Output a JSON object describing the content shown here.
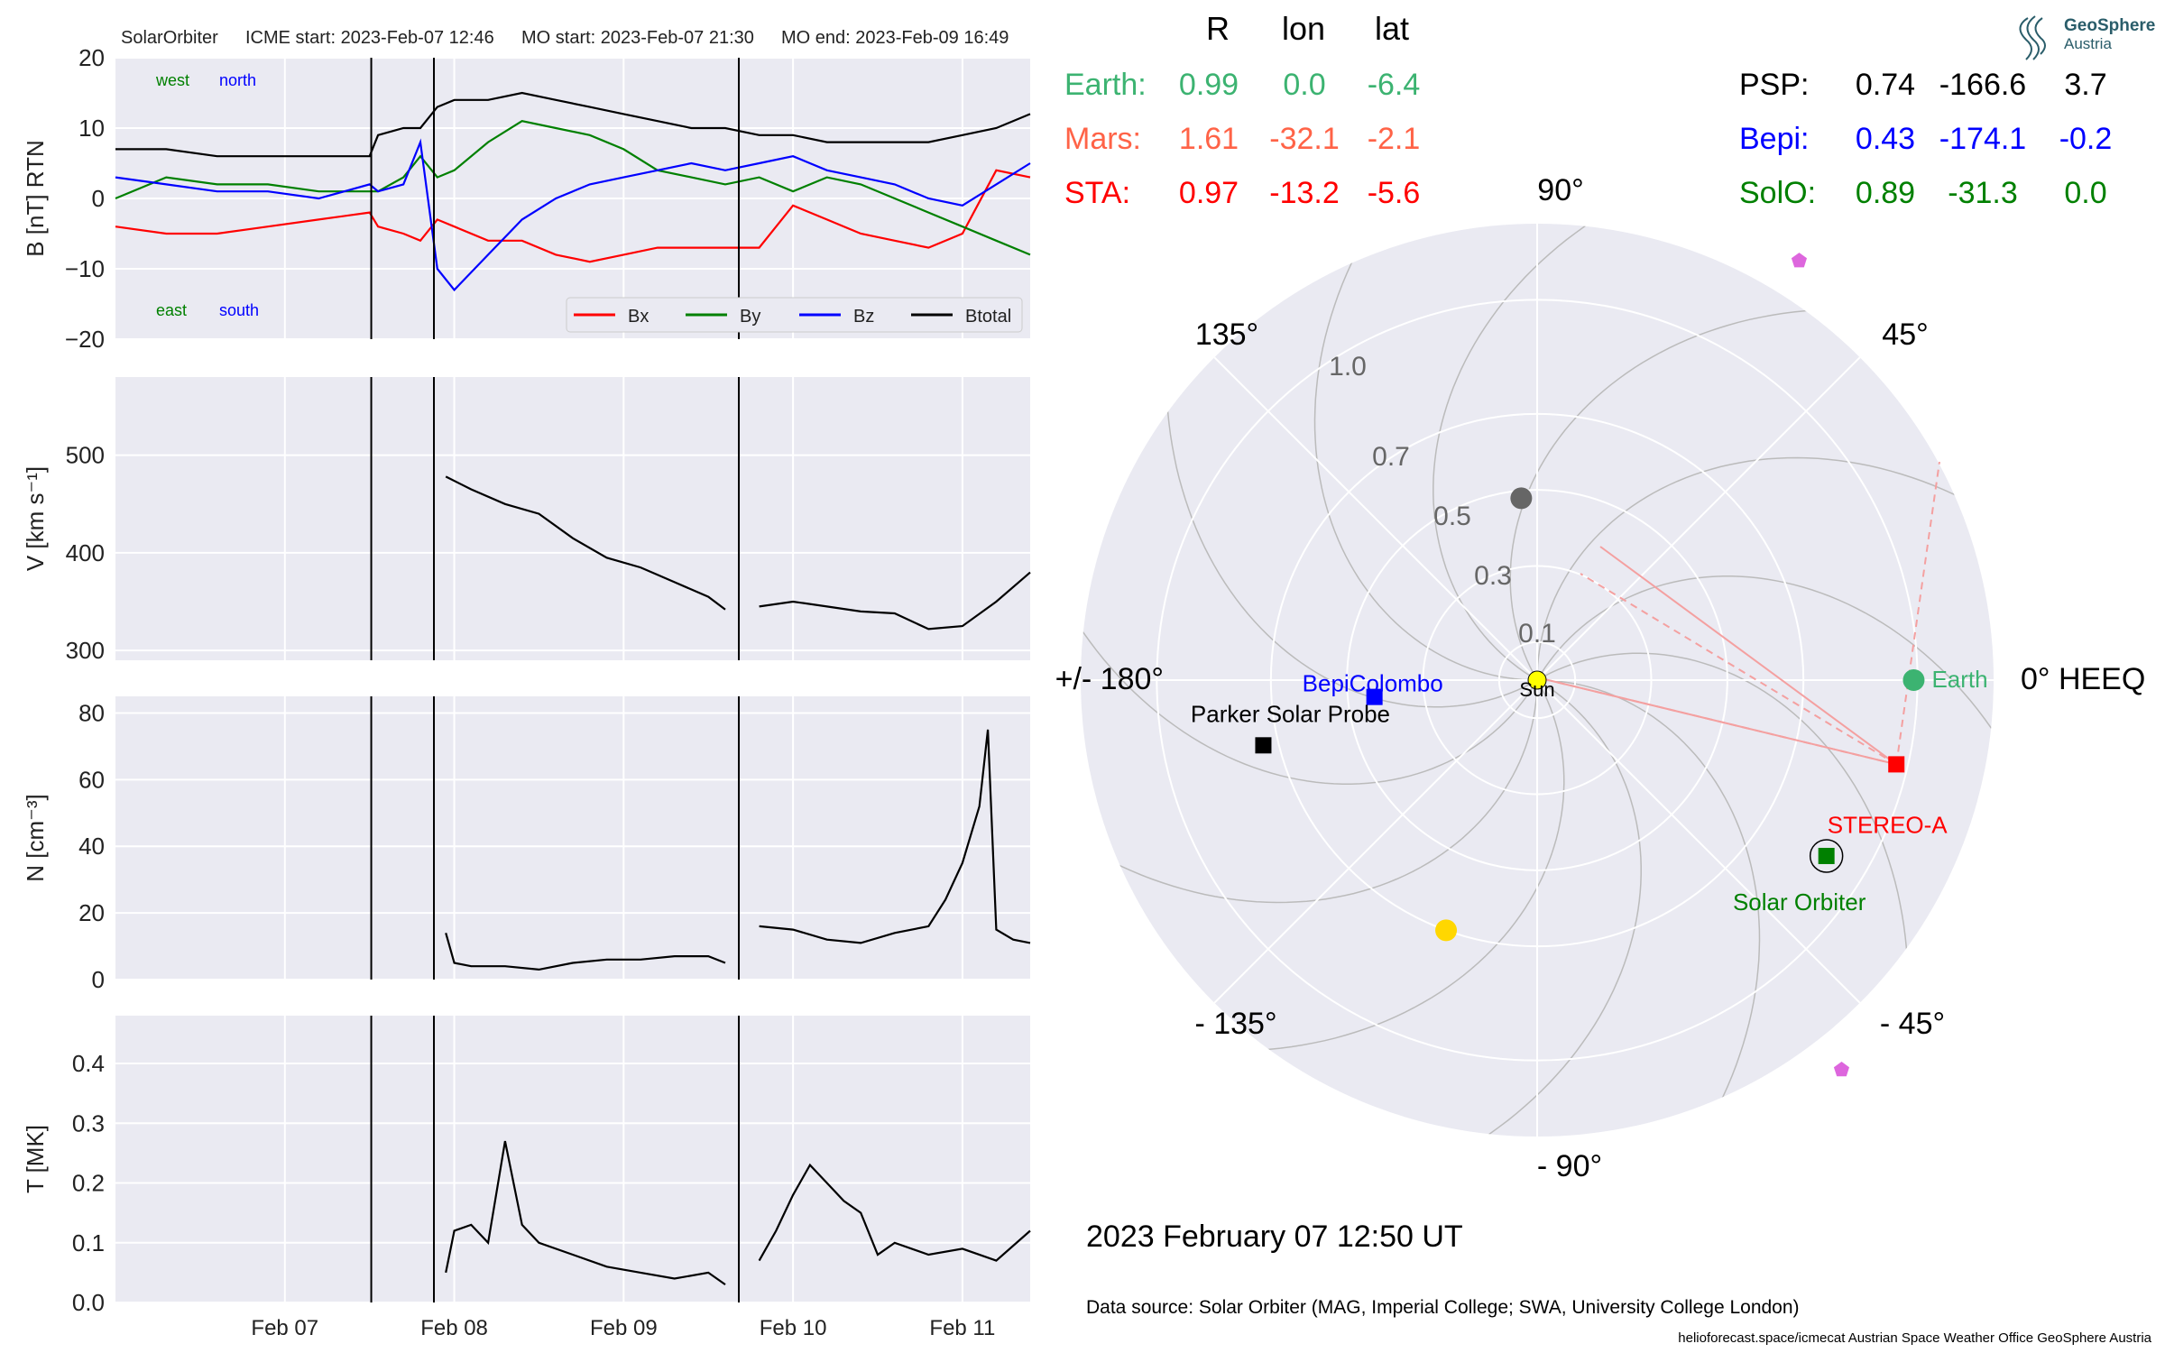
{
  "header": {
    "spacecraft": "SolarOrbiter",
    "icme_start": "ICME start: 2023-Feb-07 12:46",
    "mo_start": "MO start: 2023-Feb-07 21:30",
    "mo_end": "MO end: 2023-Feb-09 16:49"
  },
  "logo": {
    "line1": "GeoSphere",
    "line2": "Austria",
    "icon": "geosphere-logo-icon"
  },
  "positions_table": {
    "headers": [
      "R",
      "lon",
      "lat"
    ],
    "left_rows": [
      {
        "name": "Earth:",
        "R": "0.99",
        "lon": "0.0",
        "lat": "-6.4",
        "color": "#3cb371"
      },
      {
        "name": "Mars:",
        "R": "1.61",
        "lon": "-32.1",
        "lat": "-2.1",
        "color": "#ff6347"
      },
      {
        "name": "STA:",
        "R": "0.97",
        "lon": "-13.2",
        "lat": "-5.6",
        "color": "#ff0000"
      }
    ],
    "right_rows": [
      {
        "name": "PSP:",
        "R": "0.74",
        "lon": "-166.6",
        "lat": "3.7",
        "color": "#000000"
      },
      {
        "name": "Bepi:",
        "R": "0.43",
        "lon": "-174.1",
        "lat": "-0.2",
        "color": "#0000ff"
      },
      {
        "name": "SolO:",
        "R": "0.89",
        "lon": "-31.3",
        "lat": "0.0",
        "color": "#008000"
      }
    ]
  },
  "polar_plot": {
    "angle_labels": [
      "90°",
      "45°",
      "0° HEEQ",
      "- 45°",
      "- 90°",
      "- 135°",
      "+/- 180°",
      "135°"
    ],
    "radial_labels": [
      "0.1",
      "0.3",
      "0.5",
      "0.7",
      "1.0"
    ],
    "radial_values": [
      0.1,
      0.3,
      0.5,
      0.7,
      1.0
    ],
    "max_r": 1.2,
    "bodies": [
      {
        "label": "Sun",
        "r": 0.0,
        "lon": 0,
        "shape": "circle",
        "color": "#ffff00",
        "label_color": "#000000"
      },
      {
        "label": "Earth",
        "r": 0.99,
        "lon": 0.0,
        "shape": "circle",
        "color": "#3cb371",
        "label_color": "#3cb371"
      },
      {
        "label": "STEREO-A",
        "r": 0.97,
        "lon": -13.2,
        "shape": "square",
        "color": "#ff0000",
        "label_color": "#ff0000"
      },
      {
        "label": "Solar Orbiter",
        "r": 0.89,
        "lon": -31.3,
        "shape": "square",
        "color": "#008000",
        "label_color": "#008000"
      },
      {
        "label": "BepiColombo",
        "r": 0.43,
        "lon": -174.1,
        "shape": "square",
        "color": "#0000ff",
        "label_color": "#0000ff"
      },
      {
        "label": "Parker Solar Probe",
        "r": 0.74,
        "lon": -166.6,
        "shape": "square",
        "color": "#000000",
        "label_color": "#000000"
      },
      {
        "label": "",
        "r": 1.3,
        "lon": 58,
        "shape": "pentagon",
        "color": "#dd66dd"
      },
      {
        "label": "",
        "r": 1.3,
        "lon": -52,
        "shape": "pentagon",
        "color": "#dd66dd"
      },
      {
        "label": "",
        "r": 0.48,
        "lon": 95,
        "shape": "circle",
        "color": "#666666"
      },
      {
        "label": "",
        "r": 0.7,
        "lon": -110,
        "shape": "circle",
        "color": "#ffd700"
      }
    ],
    "date": "2023 February 07  12:50 UT"
  },
  "footer": {
    "data_source": "Data source: Solar Orbiter (MAG, Imperial College; SWA, University College London)",
    "credits": "helioforecast.space/icmecat   Austrian Space Weather Office   GeoSphere Austria"
  },
  "chart_data": [
    {
      "type": "line",
      "panel": "magnetic_field",
      "ylabel": "B [nT] RTN",
      "ylim": [
        -20,
        20
      ],
      "yticks": [
        -20,
        -10,
        0,
        10,
        20
      ],
      "annotations": [
        "west",
        "north",
        "east",
        "south"
      ],
      "annotation_colors": [
        "#008000",
        "#0000ff",
        "#008000",
        "#0000ff"
      ],
      "legend_position": "lower-right",
      "series": [
        {
          "name": "Bx",
          "color": "#ff0000",
          "x": [
            0,
            0.3,
            0.6,
            0.9,
            1.2,
            1.5,
            1.55,
            1.7,
            1.8,
            1.9,
            2.0,
            2.2,
            2.4,
            2.6,
            2.8,
            3.0,
            3.2,
            3.4,
            3.6,
            3.8,
            4.0,
            4.2,
            4.4,
            4.6,
            4.8,
            5.0,
            5.2,
            5.4
          ],
          "y": [
            -4,
            -5,
            -5,
            -4,
            -3,
            -2,
            -4,
            -5,
            -6,
            -3,
            -4,
            -6,
            -6,
            -8,
            -9,
            -8,
            -7,
            -7,
            -7,
            -7,
            -1,
            -3,
            -5,
            -6,
            -7,
            -5,
            4,
            3
          ]
        },
        {
          "name": "By",
          "color": "#008000",
          "x": [
            0,
            0.3,
            0.6,
            0.9,
            1.2,
            1.5,
            1.55,
            1.7,
            1.8,
            1.9,
            2.0,
            2.2,
            2.4,
            2.6,
            2.8,
            3.0,
            3.2,
            3.4,
            3.6,
            3.8,
            4.0,
            4.2,
            4.4,
            4.6,
            4.8,
            5.0,
            5.2,
            5.4
          ],
          "y": [
            0,
            3,
            2,
            2,
            1,
            1,
            1,
            3,
            6,
            3,
            4,
            8,
            11,
            10,
            9,
            7,
            4,
            3,
            2,
            3,
            1,
            3,
            2,
            0,
            -2,
            -4,
            -6,
            -8
          ]
        },
        {
          "name": "Bz",
          "color": "#0000ff",
          "x": [
            0,
            0.3,
            0.6,
            0.9,
            1.2,
            1.5,
            1.55,
            1.7,
            1.8,
            1.9,
            2.0,
            2.2,
            2.4,
            2.6,
            2.8,
            3.0,
            3.2,
            3.4,
            3.6,
            3.8,
            4.0,
            4.2,
            4.4,
            4.6,
            4.8,
            5.0,
            5.2,
            5.4
          ],
          "y": [
            3,
            2,
            1,
            1,
            0,
            2,
            1,
            2,
            8,
            -10,
            -13,
            -8,
            -3,
            0,
            2,
            3,
            4,
            5,
            4,
            5,
            6,
            4,
            3,
            2,
            0,
            -1,
            2,
            5
          ]
        },
        {
          "name": "Btotal",
          "color": "#000000",
          "x": [
            0,
            0.3,
            0.6,
            0.9,
            1.2,
            1.5,
            1.55,
            1.7,
            1.8,
            1.9,
            2.0,
            2.2,
            2.4,
            2.6,
            2.8,
            3.0,
            3.2,
            3.4,
            3.6,
            3.8,
            4.0,
            4.2,
            4.4,
            4.6,
            4.8,
            5.0,
            5.2,
            5.4
          ],
          "y": [
            7,
            7,
            6,
            6,
            6,
            6,
            9,
            10,
            10,
            13,
            14,
            14,
            15,
            14,
            13,
            12,
            11,
            10,
            10,
            9,
            9,
            8,
            8,
            8,
            8,
            9,
            10,
            12
          ]
        }
      ]
    },
    {
      "type": "line",
      "panel": "speed",
      "ylabel": "V [km s⁻¹]",
      "ylim": [
        290,
        580
      ],
      "yticks": [
        300,
        400,
        500
      ],
      "series": [
        {
          "name": "V",
          "color": "#000000",
          "segments": [
            {
              "x": [
                1.95,
                2.1,
                2.3,
                2.5,
                2.7,
                2.9,
                3.1,
                3.3,
                3.5,
                3.6
              ],
              "y": [
                478,
                465,
                450,
                440,
                415,
                395,
                385,
                370,
                355,
                342
              ]
            },
            {
              "x": [
                3.8,
                4.0,
                4.2,
                4.4,
                4.6,
                4.8,
                5.0,
                5.2,
                5.4
              ],
              "y": [
                345,
                350,
                345,
                340,
                338,
                322,
                325,
                350,
                380
              ]
            }
          ]
        }
      ]
    },
    {
      "type": "line",
      "panel": "density",
      "ylabel": "N [cm⁻³]",
      "ylim": [
        0,
        85
      ],
      "yticks": [
        0,
        20,
        40,
        60,
        80
      ],
      "series": [
        {
          "name": "N",
          "color": "#000000",
          "segments": [
            {
              "x": [
                1.95,
                2.0,
                2.1,
                2.3,
                2.5,
                2.7,
                2.9,
                3.1,
                3.3,
                3.5,
                3.6
              ],
              "y": [
                14,
                5,
                4,
                4,
                3,
                5,
                6,
                6,
                7,
                7,
                5
              ]
            },
            {
              "x": [
                3.8,
                4.0,
                4.2,
                4.4,
                4.6,
                4.8,
                4.9,
                5.0,
                5.1,
                5.15,
                5.2,
                5.3,
                5.4
              ],
              "y": [
                16,
                15,
                12,
                11,
                14,
                16,
                24,
                35,
                52,
                75,
                15,
                12,
                11
              ]
            }
          ]
        }
      ]
    },
    {
      "type": "line",
      "panel": "temperature",
      "ylabel": "T [MK]",
      "ylim": [
        0,
        0.48
      ],
      "yticks": [
        0.0,
        0.1,
        0.2,
        0.3,
        0.4
      ],
      "xlim": [
        0,
        5.4
      ],
      "xtick_positions": [
        1.0,
        2.0,
        3.0,
        4.0,
        5.0
      ],
      "xtick_labels": [
        "Feb 07",
        "Feb 08",
        "Feb 09",
        "Feb 10",
        "Feb 11"
      ],
      "series": [
        {
          "name": "T",
          "color": "#000000",
          "segments": [
            {
              "x": [
                1.95,
                2.0,
                2.1,
                2.2,
                2.3,
                2.4,
                2.5,
                2.7,
                2.9,
                3.1,
                3.3,
                3.5,
                3.6
              ],
              "y": [
                0.05,
                0.12,
                0.13,
                0.1,
                0.27,
                0.13,
                0.1,
                0.08,
                0.06,
                0.05,
                0.04,
                0.05,
                0.03
              ]
            },
            {
              "x": [
                3.8,
                3.9,
                4.0,
                4.1,
                4.2,
                4.3,
                4.4,
                4.5,
                4.6,
                4.8,
                5.0,
                5.2,
                5.4
              ],
              "y": [
                0.07,
                0.12,
                0.18,
                0.23,
                0.2,
                0.17,
                0.15,
                0.08,
                0.1,
                0.08,
                0.09,
                0.07,
                0.12
              ]
            }
          ]
        }
      ]
    }
  ],
  "event_lines_x": [
    1.51,
    1.88,
    3.68
  ]
}
